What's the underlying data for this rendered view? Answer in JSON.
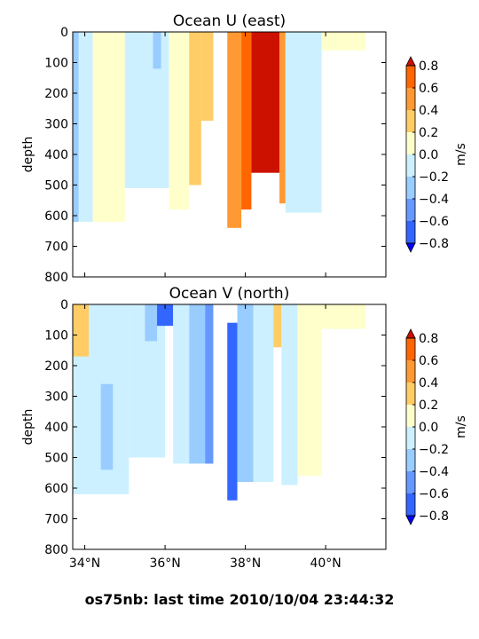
{
  "footer": "os75nb: last time 2010/10/04 23:44:32",
  "chart_data": [
    {
      "type": "contourf",
      "title": "Ocean U (east)",
      "xlabel": "",
      "ylabel": "depth",
      "xlim": [
        33.7,
        41.5
      ],
      "ylim": [
        800,
        0
      ],
      "x_tick_labels": [],
      "y_ticks": [
        0,
        100,
        200,
        300,
        400,
        500,
        600,
        700,
        800
      ],
      "colorbar": {
        "label": "m/s",
        "ticks": [
          0.8,
          0.6,
          0.4,
          0.2,
          0.0,
          -0.2,
          -0.4,
          -0.6,
          -0.8
        ],
        "tick_labels": [
          "0.8",
          "0.6",
          "0.4",
          "0.2",
          "0.0",
          "−0.2",
          "−0.4",
          "−0.6",
          "−0.8"
        ]
      },
      "levels": [
        -0.8,
        -0.6,
        -0.4,
        -0.2,
        0.0,
        0.2,
        0.4,
        0.6,
        0.8
      ],
      "colors": [
        "#0000ff",
        "#3366ff",
        "#6699ff",
        "#99ccff",
        "#ccf0ff",
        "#ffffcc",
        "#ffcc66",
        "#ff9933",
        "#ff6600",
        "#cc1100"
      ],
      "regions": [
        {
          "x": [
            33.7,
            33.85
          ],
          "depth": [
            0,
            620
          ],
          "value": -0.3
        },
        {
          "x": [
            33.85,
            34.2
          ],
          "depth": [
            0,
            620
          ],
          "value": -0.1
        },
        {
          "x": [
            34.2,
            35.0
          ],
          "depth": [
            0,
            620
          ],
          "value": 0.1
        },
        {
          "x": [
            35.0,
            36.1
          ],
          "depth": [
            0,
            510
          ],
          "value": -0.1
        },
        {
          "x": [
            35.7,
            35.9
          ],
          "depth": [
            0,
            120
          ],
          "value": -0.3
        },
        {
          "x": [
            36.1,
            36.6
          ],
          "depth": [
            0,
            580
          ],
          "value": 0.1
        },
        {
          "x": [
            36.6,
            36.9
          ],
          "depth": [
            0,
            500
          ],
          "value": 0.3
        },
        {
          "x": [
            36.9,
            37.2
          ],
          "depth": [
            0,
            290
          ],
          "value": 0.3
        },
        {
          "x": [
            37.55,
            37.9
          ],
          "depth": [
            0,
            640
          ],
          "value": 0.5
        },
        {
          "x": [
            37.9,
            38.15
          ],
          "depth": [
            0,
            580
          ],
          "value": 0.7
        },
        {
          "x": [
            38.15,
            38.85
          ],
          "depth": [
            0,
            460
          ],
          "value": 0.9
        },
        {
          "x": [
            38.85,
            39.0
          ],
          "depth": [
            0,
            560
          ],
          "value": 0.5
        },
        {
          "x": [
            39.0,
            39.9
          ],
          "depth": [
            0,
            590
          ],
          "value": -0.1
        },
        {
          "x": [
            39.9,
            41.0
          ],
          "depth": [
            0,
            60
          ],
          "value": 0.1
        }
      ]
    },
    {
      "type": "contourf",
      "title": "Ocean V (north)",
      "xlabel": "",
      "ylabel": "depth",
      "xlim": [
        33.7,
        41.5
      ],
      "ylim": [
        800,
        0
      ],
      "x_ticks": [
        34,
        36,
        38,
        40
      ],
      "x_tick_labels": [
        "34°N",
        "36°N",
        "38°N",
        "40°N"
      ],
      "y_ticks": [
        0,
        100,
        200,
        300,
        400,
        500,
        600,
        700,
        800
      ],
      "colorbar": {
        "label": "m/s",
        "ticks": [
          0.8,
          0.6,
          0.4,
          0.2,
          0.0,
          -0.2,
          -0.4,
          -0.6,
          -0.8
        ],
        "tick_labels": [
          "0.8",
          "0.6",
          "0.4",
          "0.2",
          "0.0",
          "−0.2",
          "−0.4",
          "−0.6",
          "−0.8"
        ]
      },
      "levels": [
        -0.8,
        -0.6,
        -0.4,
        -0.2,
        0.0,
        0.2,
        0.4,
        0.6,
        0.8
      ],
      "colors": [
        "#0000ff",
        "#3366ff",
        "#6699ff",
        "#99ccff",
        "#ccf0ff",
        "#ffffcc",
        "#ffcc66",
        "#ff9933",
        "#ff6600",
        "#cc1100"
      ],
      "regions": [
        {
          "x": [
            33.7,
            35.1
          ],
          "depth": [
            0,
            620
          ],
          "value": -0.1
        },
        {
          "x": [
            33.7,
            34.1
          ],
          "depth": [
            0,
            170
          ],
          "value": 0.3
        },
        {
          "x": [
            34.4,
            34.7
          ],
          "depth": [
            260,
            540
          ],
          "value": -0.3
        },
        {
          "x": [
            35.1,
            36.0
          ],
          "depth": [
            0,
            500
          ],
          "value": -0.1
        },
        {
          "x": [
            35.5,
            35.8
          ],
          "depth": [
            0,
            120
          ],
          "value": -0.3
        },
        {
          "x": [
            35.8,
            36.2
          ],
          "depth": [
            0,
            70
          ],
          "value": -0.7
        },
        {
          "x": [
            36.2,
            36.6
          ],
          "depth": [
            0,
            520
          ],
          "value": -0.1
        },
        {
          "x": [
            36.6,
            37.2
          ],
          "depth": [
            0,
            520
          ],
          "value": -0.3
        },
        {
          "x": [
            37.0,
            37.2
          ],
          "depth": [
            0,
            520
          ],
          "value": -0.5
        },
        {
          "x": [
            37.55,
            37.8
          ],
          "depth": [
            60,
            640
          ],
          "value": -0.7
        },
        {
          "x": [
            37.8,
            38.2
          ],
          "depth": [
            0,
            580
          ],
          "value": -0.3
        },
        {
          "x": [
            38.2,
            38.7
          ],
          "depth": [
            0,
            580
          ],
          "value": -0.1
        },
        {
          "x": [
            38.7,
            38.9
          ],
          "depth": [
            0,
            140
          ],
          "value": 0.3
        },
        {
          "x": [
            38.9,
            39.3
          ],
          "depth": [
            0,
            590
          ],
          "value": -0.1
        },
        {
          "x": [
            39.3,
            39.9
          ],
          "depth": [
            0,
            560
          ],
          "value": 0.1
        },
        {
          "x": [
            39.9,
            41.0
          ],
          "depth": [
            0,
            80
          ],
          "value": 0.1
        }
      ]
    }
  ]
}
